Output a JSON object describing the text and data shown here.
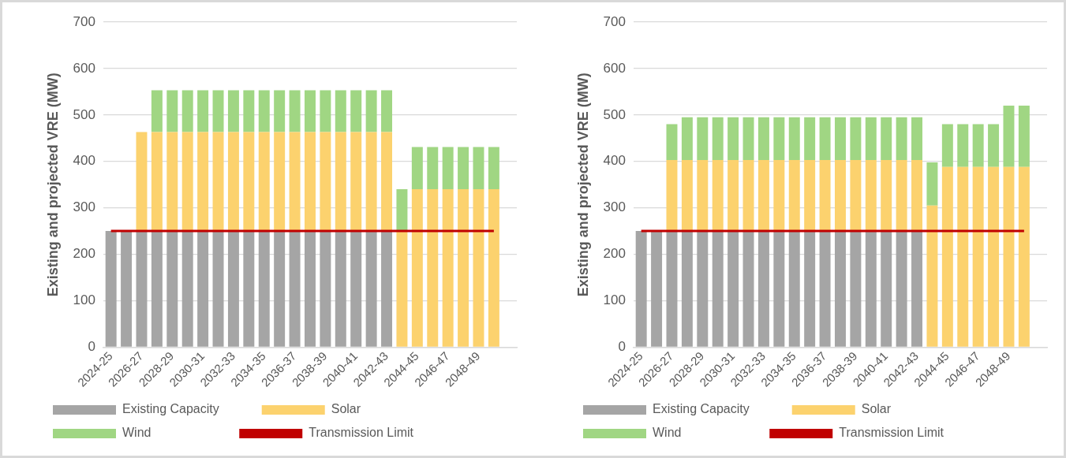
{
  "chart_data": [
    {
      "type": "bar",
      "stacked": true,
      "ylabel": "Existing and projected VRE (MW)",
      "categories": [
        "2024-25",
        null,
        "2026-27",
        null,
        "2028-29",
        null,
        "2030-31",
        null,
        "2032-33",
        null,
        "2034-35",
        null,
        "2036-37",
        null,
        "2038-39",
        null,
        "2040-41",
        null,
        "2042-43",
        null,
        "2044-45",
        null,
        "2046-47",
        null,
        "2048-49",
        null,
        null
      ],
      "series": [
        {
          "name": "Existing Capacity",
          "color": "#a5a5a5",
          "values": [
            250,
            250,
            250,
            250,
            250,
            250,
            250,
            250,
            250,
            250,
            250,
            250,
            250,
            250,
            250,
            250,
            250,
            250,
            250,
            0,
            0,
            0,
            0,
            0,
            0,
            0,
            null
          ]
        },
        {
          "name": "Solar",
          "color": "#fcd26e",
          "values": [
            0,
            0,
            213,
            213,
            213,
            213,
            213,
            213,
            213,
            213,
            213,
            213,
            213,
            213,
            213,
            213,
            213,
            213,
            213,
            250,
            340,
            340,
            340,
            340,
            340,
            340,
            null
          ]
        },
        {
          "name": "Wind",
          "color": "#a0d683",
          "values": [
            0,
            0,
            0,
            90,
            90,
            90,
            90,
            90,
            90,
            90,
            90,
            90,
            90,
            90,
            90,
            90,
            90,
            90,
            90,
            90,
            91,
            91,
            91,
            91,
            91,
            91,
            null
          ]
        },
        {
          "name": "Transmission Limit",
          "type": "line",
          "color": "#c00000",
          "marker": "none",
          "values": [
            250,
            250,
            250,
            250,
            250,
            250,
            250,
            250,
            250,
            250,
            250,
            250,
            250,
            250,
            250,
            250,
            250,
            250,
            250,
            250,
            250,
            250,
            250,
            250,
            250,
            250,
            null
          ]
        }
      ],
      "ylim": [
        0,
        700
      ],
      "yticks": [
        0,
        100,
        200,
        300,
        400,
        500,
        600,
        700
      ],
      "grid": "y",
      "legend": "bottom"
    },
    {
      "type": "bar",
      "stacked": true,
      "ylabel": "Existing and projected VRE (MW)",
      "categories": [
        "2024-25",
        null,
        "2026-27",
        null,
        "2028-29",
        null,
        "2030-31",
        null,
        "2032-33",
        null,
        "2034-35",
        null,
        "2036-37",
        null,
        "2038-39",
        null,
        "2040-41",
        null,
        "2042-43",
        null,
        "2044-45",
        null,
        "2046-47",
        null,
        "2048-49",
        null,
        null
      ],
      "series": [
        {
          "name": "Existing Capacity",
          "color": "#a5a5a5",
          "values": [
            250,
            250,
            250,
            250,
            250,
            250,
            250,
            250,
            250,
            250,
            250,
            250,
            250,
            250,
            250,
            250,
            250,
            250,
            250,
            0,
            0,
            0,
            0,
            0,
            0,
            0,
            null
          ]
        },
        {
          "name": "Solar",
          "color": "#fcd26e",
          "values": [
            0,
            0,
            153,
            153,
            153,
            153,
            153,
            153,
            153,
            153,
            153,
            153,
            153,
            153,
            153,
            153,
            153,
            153,
            153,
            305,
            388,
            388,
            388,
            388,
            388,
            388,
            null
          ]
        },
        {
          "name": "Wind",
          "color": "#a0d683",
          "values": [
            0,
            0,
            77,
            92,
            92,
            92,
            92,
            92,
            92,
            92,
            92,
            92,
            92,
            92,
            92,
            92,
            92,
            92,
            92,
            93,
            92,
            92,
            92,
            92,
            132,
            132,
            null
          ]
        },
        {
          "name": "Transmission Limit",
          "type": "line",
          "color": "#c00000",
          "marker": "none",
          "values": [
            250,
            250,
            250,
            250,
            250,
            250,
            250,
            250,
            250,
            250,
            250,
            250,
            250,
            250,
            250,
            250,
            250,
            250,
            250,
            250,
            250,
            250,
            250,
            250,
            250,
            250,
            null
          ]
        }
      ],
      "ylim": [
        0,
        700
      ],
      "yticks": [
        0,
        100,
        200,
        300,
        400,
        500,
        600,
        700
      ],
      "grid": "y",
      "legend": "bottom"
    }
  ]
}
